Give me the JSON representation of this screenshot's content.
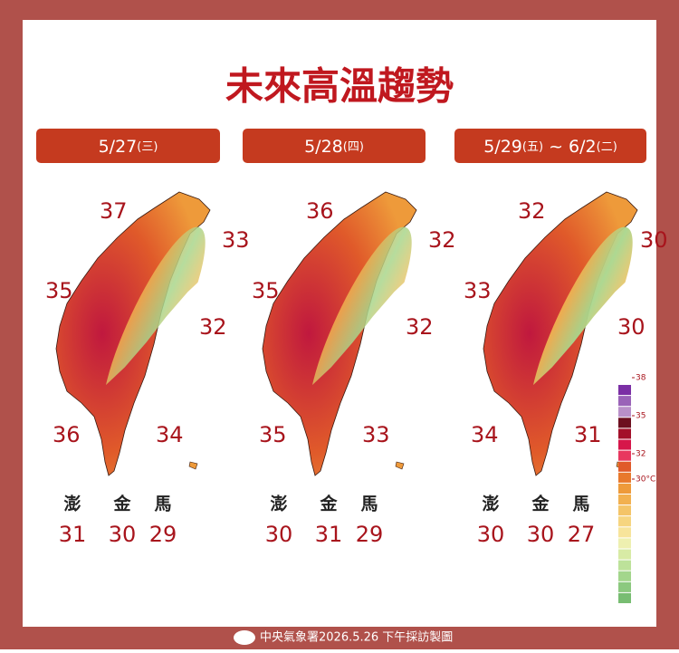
{
  "title": "未來高溫趨勢",
  "panels": [
    {
      "header": [
        "5/27",
        "(三)"
      ],
      "map_labels": [
        37,
        33,
        35,
        32,
        36,
        34
      ],
      "islands": [
        {
          "name": "澎",
          "value": 31
        },
        {
          "name": "金",
          "value": 30
        },
        {
          "name": "馬",
          "value": 29
        }
      ]
    },
    {
      "header": [
        "5/28",
        "(四)"
      ],
      "map_labels": [
        36,
        32,
        35,
        32,
        35,
        33
      ],
      "islands": [
        {
          "name": "澎",
          "value": 30
        },
        {
          "name": "金",
          "value": 31
        },
        {
          "name": "馬",
          "value": 29
        }
      ]
    },
    {
      "header": [
        "5/29",
        "(五)",
        " ~ 6/2",
        "(二)"
      ],
      "map_labels": [
        32,
        30,
        33,
        30,
        34,
        31
      ],
      "islands": [
        {
          "name": "澎",
          "value": 30
        },
        {
          "name": "金",
          "value": 30
        },
        {
          "name": "馬",
          "value": 27
        }
      ]
    }
  ],
  "legend": {
    "ticks": [
      38,
      35,
      32,
      {
        "value": 30,
        "label": "30°C"
      }
    ],
    "colors": [
      "#7b2fa5",
      "#9a63b8",
      "#b990c9",
      "#6d0f1f",
      "#a3102a",
      "#d6174a",
      "#e8385f",
      "#e05a2a",
      "#e8792c",
      "#ee9a3a",
      "#f2b04f",
      "#f4c468",
      "#f6d580",
      "#f7e49b",
      "#eef0b0",
      "#d8eba5",
      "#bde29a",
      "#a3d68c",
      "#8cc97f",
      "#78bd72"
    ]
  },
  "footer": "中央氣象署2026.5.26 下午採訪製圖"
}
